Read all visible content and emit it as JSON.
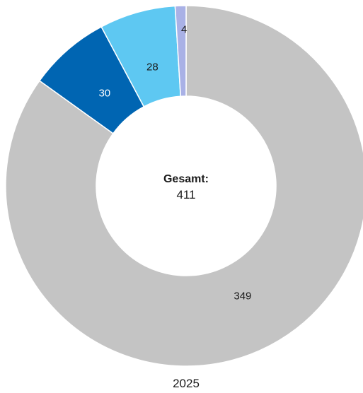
{
  "chart_data": {
    "type": "pie",
    "variant": "donut",
    "categories": [
      "",
      "",
      "",
      ""
    ],
    "values": [
      349,
      30,
      28,
      4
    ],
    "colors": [
      "#c4c4c4",
      "#0065b2",
      "#5ec8f2",
      "#a9b1e6"
    ],
    "label_colors": [
      "#1a1a1a",
      "#ffffff",
      "#1a1a1a",
      "#1a1a1a"
    ],
    "total_label": "Gesamt:",
    "total_value": "411",
    "xlabel": "2025",
    "start_angle": "12 o'clock",
    "direction": "clockwise"
  }
}
